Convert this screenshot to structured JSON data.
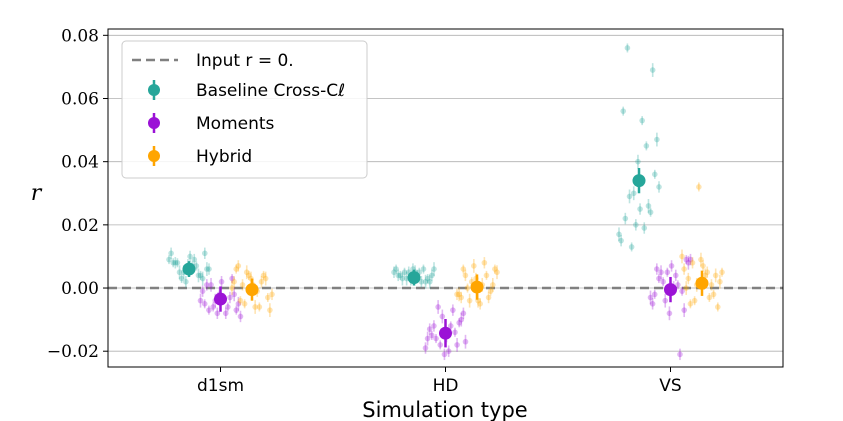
{
  "chart_data": {
    "type": "scatter",
    "xlabel": "Simulation type",
    "ylabel": "r",
    "ylim": [
      -0.025,
      0.082
    ],
    "yticks": [
      -0.02,
      0.0,
      0.02,
      0.04,
      0.06,
      0.08
    ],
    "ytick_labels": [
      "−0.02",
      "0.00",
      "0.02",
      "0.04",
      "0.06",
      "0.08"
    ],
    "grid": "horizontal",
    "categories": [
      "d1sm",
      "HD",
      "VS"
    ],
    "reference_line": {
      "y": 0.0,
      "label": "Input r = 0.",
      "color": "#808080"
    },
    "legend_position": "top-left",
    "series": [
      {
        "name": "Baseline Cross-Cℓ",
        "legend_label": "Baseline Cross-C",
        "legend_sub": "ℓ",
        "color": "#26a69a",
        "offset": -0.14,
        "means": [
          0.006,
          0.0033,
          0.034
        ],
        "mean_errors": [
          0.0025,
          0.0025,
          0.004
        ],
        "scatter": [
          [
            0.009,
            0.011,
            0.004,
            0.007,
            0.002,
            0.005,
            0.008,
            0.006,
            0.003,
            0.007,
            0.01,
            0.005,
            0.008,
            0.011,
            0.006,
            0.004,
            0.009,
            0.007,
            0.003,
            0.008
          ],
          [
            0.005,
            0.003,
            0.006,
            0.004,
            0.002,
            0.005,
            0.006,
            0.003,
            0.004,
            0.005,
            0.002,
            0.006,
            0.004,
            0.003,
            0.005,
            0.004,
            0.006,
            0.003,
            0.002,
            0.005
          ],
          [
            0.026,
            0.053,
            0.02,
            0.029,
            0.056,
            0.032,
            0.069,
            0.045,
            0.025,
            0.03,
            0.076,
            0.015,
            0.047,
            0.024,
            0.019,
            0.04,
            0.013,
            0.022,
            0.017,
            0.036
          ]
        ]
      },
      {
        "name": "Moments",
        "legend_label": "Moments",
        "color": "#9b12d6",
        "offset": 0.0,
        "means": [
          -0.0035,
          -0.0143,
          -0.0005
        ],
        "mean_errors": [
          0.004,
          0.0045,
          0.004
        ],
        "scatter": [
          [
            -0.003,
            -0.008,
            0.001,
            -0.005,
            -0.009,
            -0.002,
            -0.006,
            0.002,
            -0.004,
            -0.007,
            -0.001,
            -0.005,
            0.003,
            -0.008,
            -0.002,
            -0.006,
            0.001,
            -0.004,
            -0.007,
            -0.003
          ],
          [
            -0.008,
            -0.018,
            -0.012,
            -0.021,
            -0.006,
            -0.015,
            -0.019,
            -0.01,
            -0.014,
            -0.02,
            -0.009,
            -0.016,
            -0.013,
            -0.017,
            -0.011,
            -0.007,
            -0.015,
            -0.018,
            -0.012,
            -0.016
          ],
          [
            0.005,
            -0.002,
            0.009,
            -0.007,
            0.001,
            0.007,
            -0.004,
            0.003,
            -0.005,
            0.008,
            -0.001,
            0.004,
            -0.008,
            0.002,
            0.006,
            -0.003,
            0.009,
            -0.021,
            0.0,
            0.005
          ]
        ]
      },
      {
        "name": "Hybrid",
        "legend_label": "Hybrid",
        "color": "#ffa500",
        "offset": 0.14,
        "means": [
          -0.0005,
          0.0003,
          0.0015
        ],
        "mean_errors": [
          0.0035,
          0.004,
          0.004
        ],
        "scatter": [
          [
            0.006,
            -0.002,
            0.003,
            -0.006,
            0.001,
            0.005,
            -0.004,
            0.002,
            -0.007,
            0.004,
            -0.001,
            0.003,
            -0.005,
            0.007,
            0.0,
            -0.003,
            0.002,
            -0.006,
            0.004,
            0.001
          ],
          [
            0.003,
            -0.004,
            0.006,
            -0.002,
            0.001,
            0.004,
            -0.005,
            0.007,
            0.0,
            -0.003,
            0.005,
            -0.001,
            0.008,
            -0.004,
            0.002,
            0.004,
            -0.002,
            0.006,
            -0.003,
            0.001
          ],
          [
            0.004,
            -0.003,
            0.007,
            0.001,
            -0.005,
            0.006,
            0.002,
            -0.002,
            0.005,
            0.009,
            -0.004,
            0.003,
            0.01,
            -0.006,
            0.001,
            0.004,
            0.032,
            0.008,
            0.0,
            0.005
          ]
        ]
      }
    ]
  }
}
